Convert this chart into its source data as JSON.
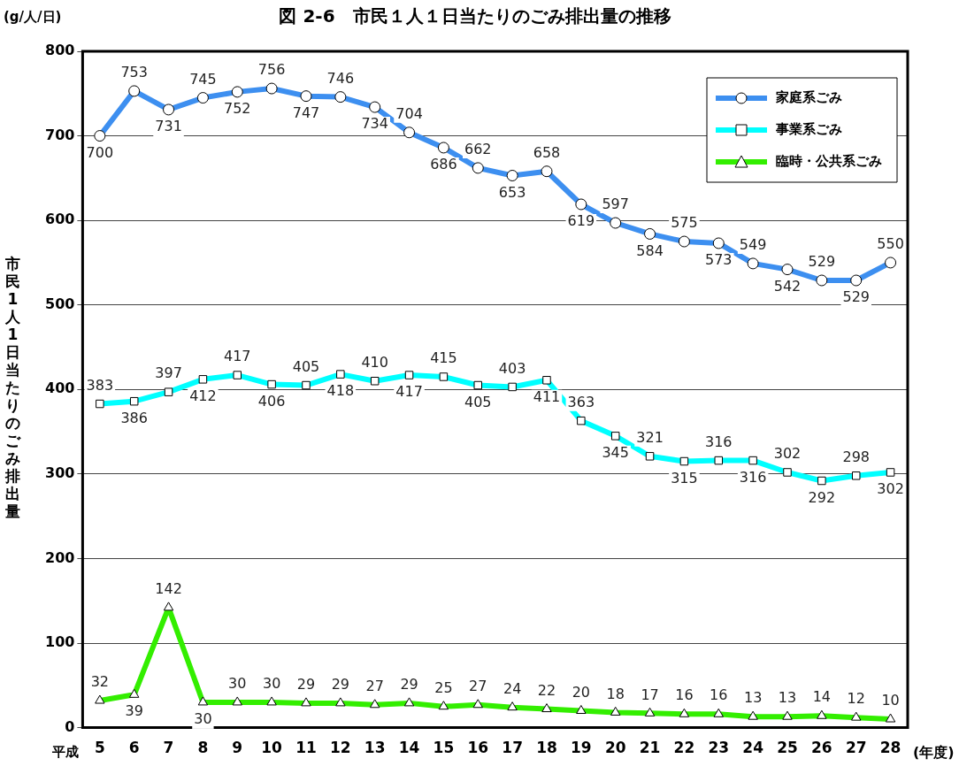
{
  "chart_data": {
    "type": "line",
    "title": "図 2-6　市民１人１日当たりのごみ排出量の推移",
    "ylabel": "市民1人1日当たりのごみ排出量",
    "xlabel": "(年度)",
    "annotations": [
      "(g/人/日)",
      "平成"
    ],
    "categories": [
      "5",
      "6",
      "7",
      "8",
      "9",
      "10",
      "11",
      "12",
      "13",
      "14",
      "15",
      "16",
      "17",
      "18",
      "19",
      "20",
      "21",
      "22",
      "23",
      "24",
      "25",
      "26",
      "27",
      "28"
    ],
    "series": [
      {
        "name": "家庭系ごみ",
        "color": "#3d8ff0",
        "marker": "circle",
        "values": [
          700,
          753,
          731,
          745,
          752,
          756,
          747,
          746,
          734,
          704,
          686,
          662,
          653,
          658,
          619,
          597,
          584,
          575,
          573,
          549,
          542,
          529,
          529,
          550
        ]
      },
      {
        "name": "事業系ごみ",
        "color": "#00ffff",
        "marker": "square",
        "values": [
          383,
          386,
          397,
          412,
          417,
          406,
          405,
          418,
          410,
          417,
          415,
          405,
          403,
          411,
          363,
          345,
          321,
          315,
          316,
          316,
          302,
          292,
          298,
          302
        ]
      },
      {
        "name": "臨時・公共系ごみ",
        "color": "#33ee00",
        "marker": "triangle",
        "values": [
          32,
          39,
          142,
          30,
          30,
          30,
          29,
          29,
          27,
          29,
          25,
          27,
          24,
          22,
          20,
          18,
          17,
          16,
          16,
          13,
          13,
          14,
          12,
          10
        ]
      }
    ],
    "ylim": [
      0,
      800
    ],
    "yticks": [
      0,
      100,
      200,
      300,
      400,
      500,
      600,
      700,
      800
    ],
    "grid": "y",
    "legend": "top right",
    "data_labels": true,
    "line_style": "solid"
  }
}
